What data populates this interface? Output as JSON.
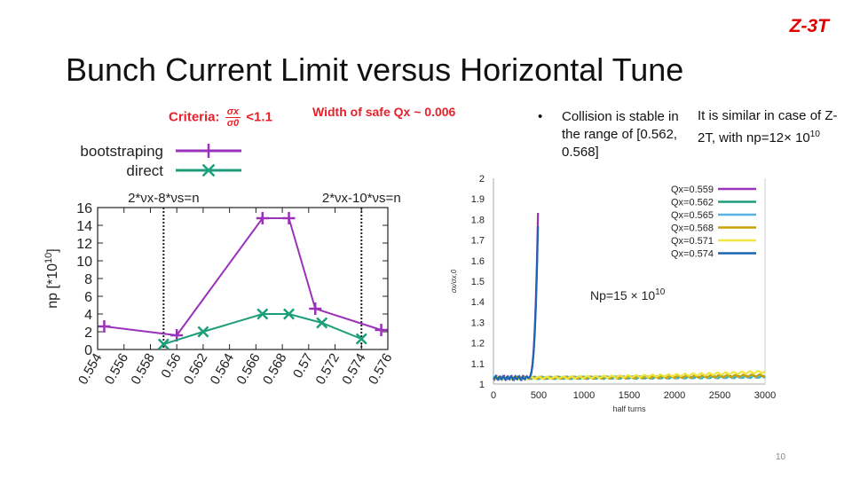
{
  "slide": {
    "tag": "Z-3T",
    "title": "Bunch Current Limit versus Horizontal Tune",
    "criteria_label": "Criteria:",
    "criteria_num": "σx",
    "criteria_den": "σ0",
    "criteria_limit": "<1.1",
    "width_note": "Width of safe Qx ~ 0.006",
    "bullet_dot": "•",
    "bullet_text": "Collision is stable in the range of [0.562, 0.568]",
    "similar_text": "It is similar in case of Z-2T, with np=12× 10",
    "similar_exp": "10",
    "page_number": "10"
  },
  "chart_data": [
    {
      "type": "line",
      "xlabel": "",
      "ylabel": "np [*10^10]",
      "ylim": [
        0,
        16
      ],
      "xlim": [
        0.554,
        0.576
      ],
      "x_ticks": [
        "0.554",
        "0.556",
        "0.558",
        "0.56",
        "0.562",
        "0.564",
        "0.566",
        "0.568",
        "0.57",
        "0.572",
        "0.574",
        "0.576"
      ],
      "y_ticks": [
        "0",
        "2",
        "4",
        "6",
        "8",
        "10",
        "12",
        "14",
        "16"
      ],
      "colors": {
        "bootstraping": "#9932b8",
        "direct": "#1d9e7a"
      },
      "legend": "top-left, outside",
      "series": [
        {
          "name": "bootstraping",
          "marker": "+",
          "x": [
            0.5545,
            0.56,
            0.5665,
            0.5685,
            0.5705,
            0.5755
          ],
          "y": [
            2.6,
            1.6,
            14.8,
            14.8,
            4.6,
            2.2
          ]
        },
        {
          "name": "direct",
          "marker": "x",
          "x": [
            0.559,
            0.562,
            0.5665,
            0.5685,
            0.571,
            0.574
          ],
          "y": [
            0.6,
            2.0,
            4.0,
            4.0,
            3.0,
            1.2
          ]
        }
      ],
      "resonance_lines": [
        {
          "x": 0.559,
          "label": "2*νx-8*νs=n"
        },
        {
          "x": 0.574,
          "label": "2*νx-10*νs=n"
        }
      ]
    },
    {
      "type": "line",
      "xlabel": "half turns",
      "ylabel": "σx/σx,0",
      "xlim": [
        0,
        3000
      ],
      "ylim": [
        1,
        2
      ],
      "x_ticks": [
        "0",
        "500",
        "1000",
        "1500",
        "2000",
        "2500",
        "3000"
      ],
      "y_ticks": [
        "1",
        "1.1",
        "1.2",
        "1.3",
        "1.4",
        "1.5",
        "1.6",
        "1.7",
        "1.8",
        "1.9",
        "2"
      ],
      "legend": "top-right",
      "annotation": "Np=15 × 10",
      "annotation_exp": "10",
      "series": [
        {
          "name": "Qx=0.559",
          "color": "#9932b8",
          "behavior": "blow-up"
        },
        {
          "name": "Qx=0.562",
          "color": "#1d9e7a",
          "behavior": "stable"
        },
        {
          "name": "Qx=0.565",
          "color": "#59b4e6",
          "behavior": "stable"
        },
        {
          "name": "Qx=0.568",
          "color": "#c7a200",
          "behavior": "stable"
        },
        {
          "name": "Qx=0.571",
          "color": "#f0e442",
          "behavior": "stable"
        },
        {
          "name": "Qx=0.574",
          "color": "#1f64b0",
          "behavior": "blow-up"
        }
      ]
    }
  ]
}
